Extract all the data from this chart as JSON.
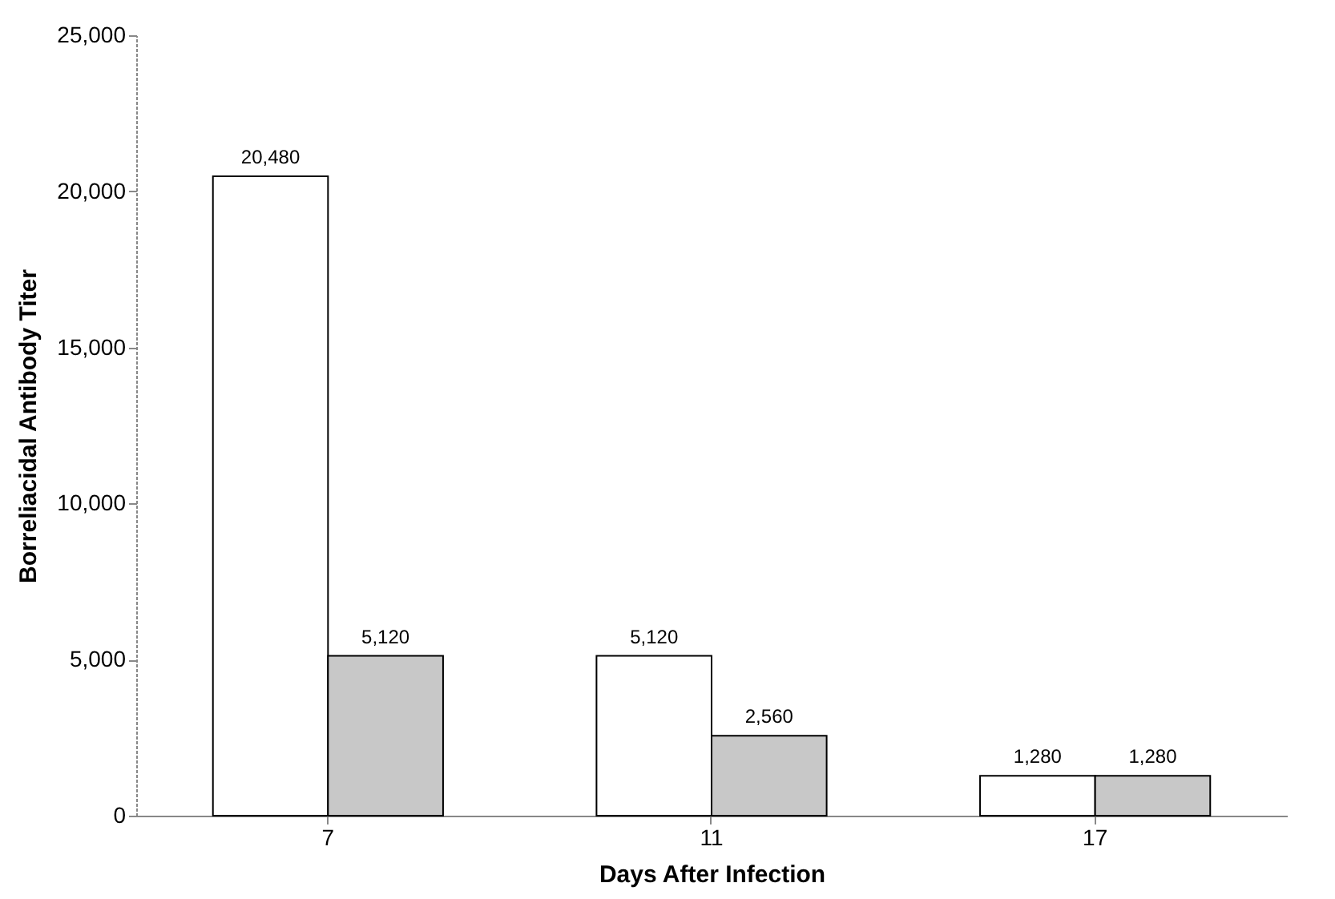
{
  "chart_data": {
    "type": "bar",
    "xlabel": "Days After Infection",
    "ylabel": "Borreliacidal Antibody Titer",
    "categories": [
      "7",
      "11",
      "17"
    ],
    "series": [
      {
        "color": "#ffffff",
        "values": [
          20480,
          5120,
          1280
        ],
        "value_labels": [
          "20,480",
          "5,120",
          "1,280"
        ]
      },
      {
        "color": "#c8c8c8",
        "values": [
          5120,
          2560,
          1280
        ],
        "value_labels": [
          "5,120",
          "2,560",
          "1,280"
        ]
      }
    ],
    "ylim": [
      0,
      25000
    ],
    "yticks": [
      {
        "value": 0,
        "label": "0"
      },
      {
        "value": 5000,
        "label": "5,000"
      },
      {
        "value": 10000,
        "label": "10,000"
      },
      {
        "value": 15000,
        "label": "15,000"
      },
      {
        "value": 20000,
        "label": "20,000"
      },
      {
        "value": 25000,
        "label": "25,000"
      }
    ],
    "grid": false
  }
}
